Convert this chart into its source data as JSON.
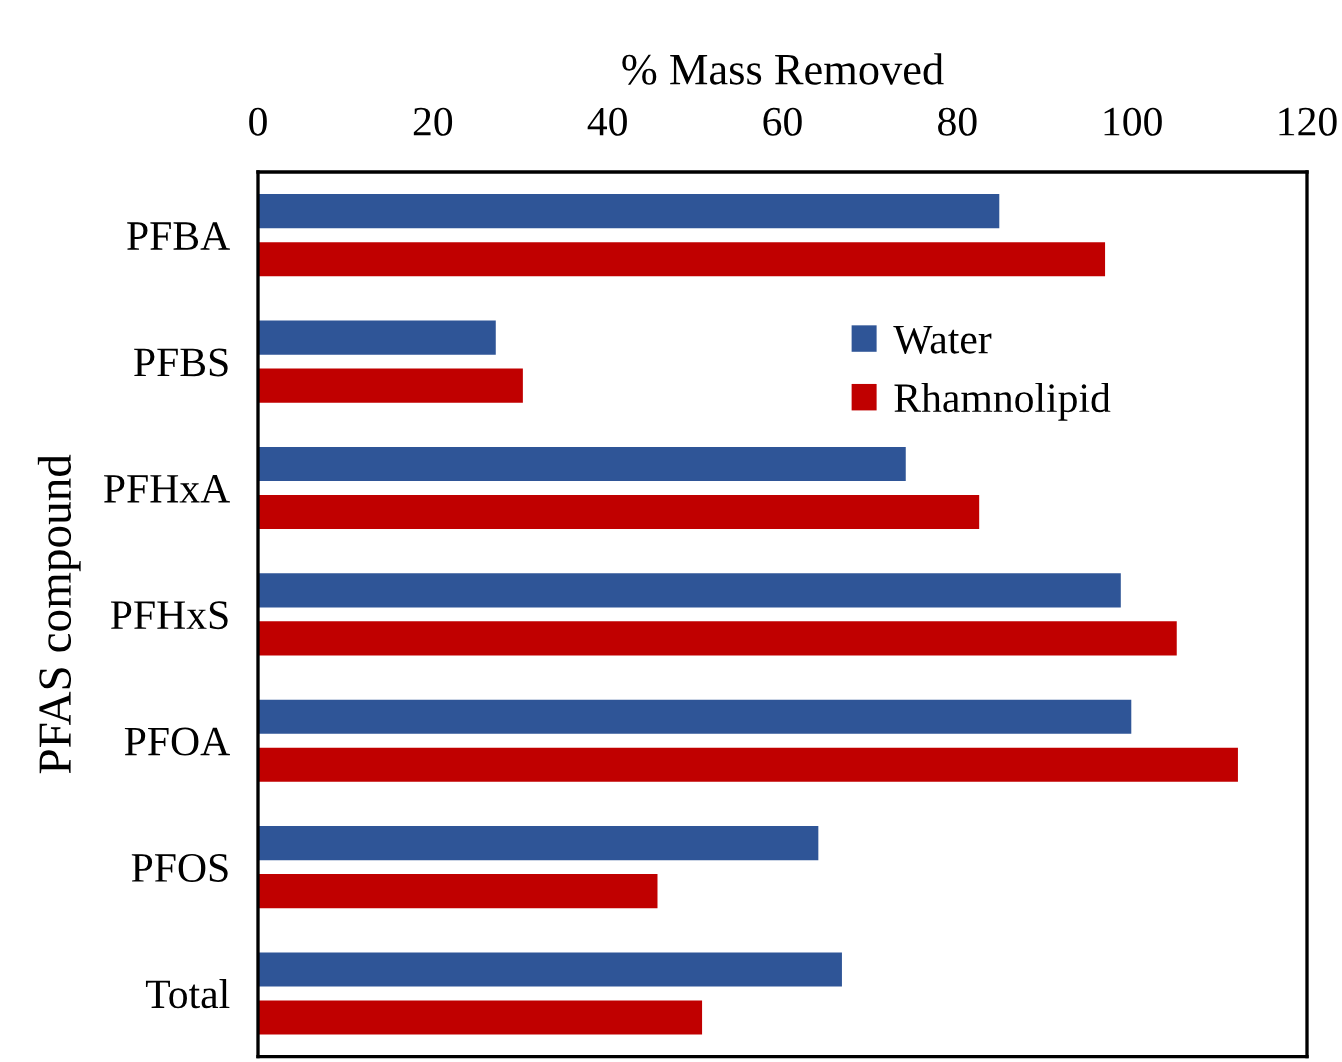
{
  "chart_data": {
    "type": "bar",
    "orientation": "horizontal",
    "xlabel": "% Mass Removed",
    "ylabel": "PFAS compound",
    "categories": [
      "PFBA",
      "PFBS",
      "PFHxA",
      "PFHxS",
      "PFOA",
      "PFOS",
      "Total"
    ],
    "series": [
      {
        "name": "Water",
        "color": "#2f5597",
        "values": [
          84.8,
          27.2,
          74.1,
          98.7,
          99.9,
          64.1,
          66.8
        ]
      },
      {
        "name": "Rhamnolipid",
        "color": "#c00000",
        "values": [
          96.9,
          30.3,
          82.5,
          105.1,
          112.1,
          45.7,
          50.8
        ]
      }
    ],
    "xlim": [
      0,
      120
    ],
    "xticks": [
      0,
      20,
      40,
      60,
      80,
      100,
      120
    ],
    "grid": false,
    "legend": "top right"
  }
}
